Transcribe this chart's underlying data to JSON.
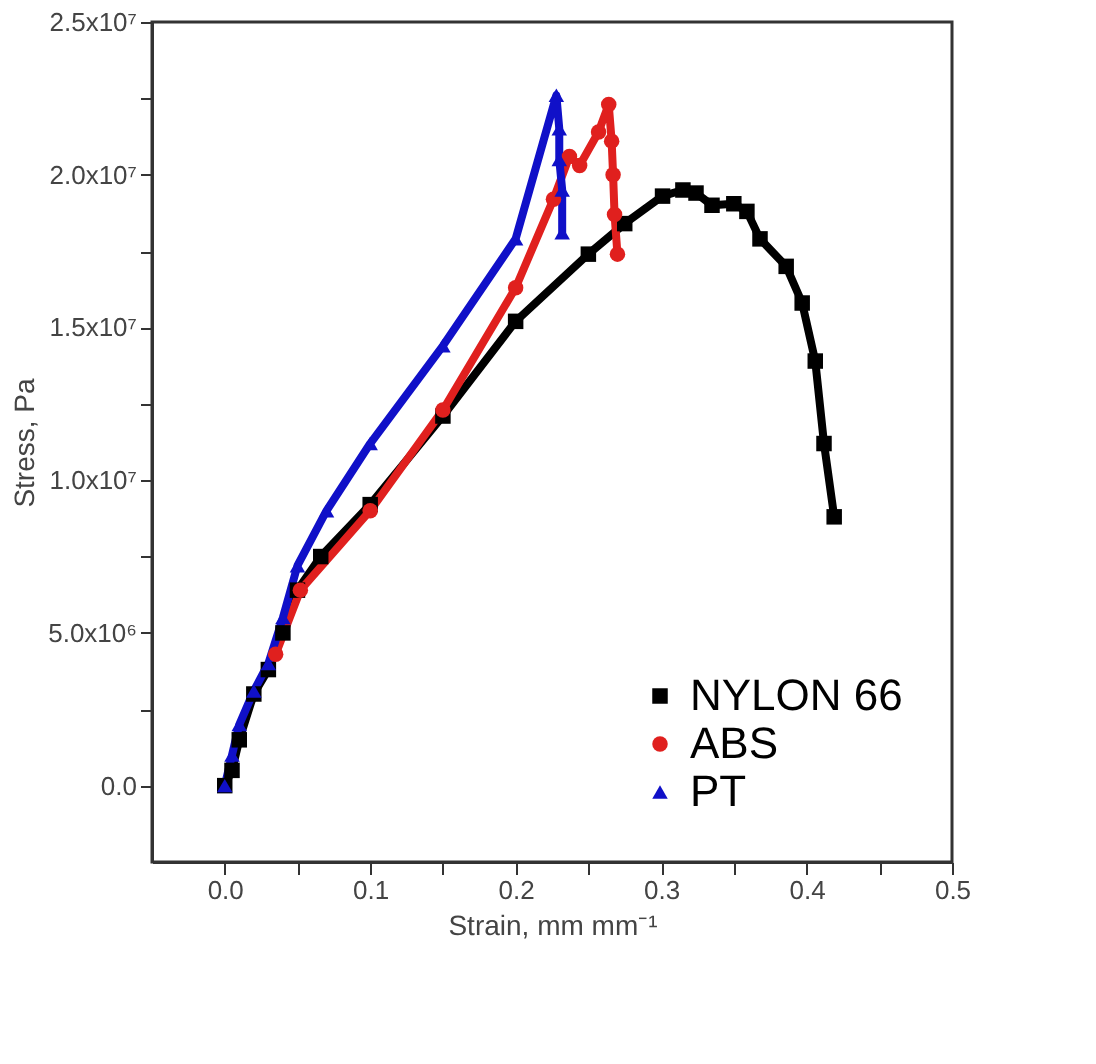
{
  "chart_data": {
    "type": "line",
    "xlabel": "Strain, mm mm⁻¹",
    "ylabel": "Stress, Pa",
    "xlim": [
      -0.05,
      0.5
    ],
    "ylim": [
      -2500000,
      25000000
    ],
    "xticks": [
      {
        "value": 0,
        "label": "0.0"
      },
      {
        "value": 0.05,
        "label": null
      },
      0.1,
      {
        "value": 0.15,
        "label": null
      },
      0.2,
      {
        "value": 0.25,
        "label": null
      },
      0.3,
      {
        "value": 0.35,
        "label": null
      },
      0.4,
      {
        "value": 0.45,
        "label": null
      },
      0.5
    ],
    "yticks": [
      {
        "value": 0,
        "label": "0.0"
      },
      {
        "value": 2500000,
        "label": null
      },
      {
        "value": 5000000,
        "label": "5.0x10⁶"
      },
      {
        "value": 7500000,
        "label": null
      },
      {
        "value": 10000000,
        "label": "1.0x10⁷"
      },
      {
        "value": 12500000,
        "label": null
      },
      {
        "value": 15000000,
        "label": "1.5x10⁷"
      },
      {
        "value": 17500000,
        "label": null
      },
      {
        "value": 20000000,
        "label": "2.0x10⁷"
      },
      {
        "value": 22500000,
        "label": null
      },
      {
        "value": 25000000,
        "label": "2.5x10⁷"
      }
    ],
    "grid": false,
    "legend": "bottom right",
    "series": [
      {
        "name": "NYLON 66",
        "color": "#000000",
        "marker": "square",
        "x": [
          0,
          0.005,
          0.01,
          0.02,
          0.03,
          0.04,
          0.05,
          0.066,
          0.1,
          0.15,
          0.2,
          0.25,
          0.275,
          0.301,
          0.315,
          0.324,
          0.335,
          0.35,
          0.359,
          0.368,
          0.386,
          0.397,
          0.406,
          0.412,
          0.419
        ],
        "values": [
          0,
          500000,
          1500000,
          3000000,
          3800000,
          5000000,
          6400000,
          7500000,
          9200000,
          12100000,
          15200000,
          17400000,
          18400000,
          19300000,
          19500000,
          19400000,
          19000000,
          19050000,
          18800000,
          17900000,
          17000000,
          15800000,
          13900000,
          11200000,
          8800000
        ]
      },
      {
        "name": "ABS",
        "color": "#e0201e",
        "marker": "circle",
        "x": [
          0.035,
          0.052,
          0.1,
          0.15,
          0.2,
          0.226,
          0.237,
          0.244,
          0.257,
          0.264,
          0.266,
          0.267,
          0.268,
          0.27
        ],
        "values": [
          4300000,
          6400000,
          9000000,
          12300000,
          16300000,
          19200000,
          20600000,
          20300000,
          21400000,
          22300000,
          21100000,
          20000000,
          18700000,
          17400000
        ]
      },
      {
        "name": "PT",
        "color": "#1010c8",
        "marker": "triangle",
        "x": [
          0,
          0.005,
          0.01,
          0.02,
          0.03,
          0.04,
          0.05,
          0.07,
          0.1,
          0.15,
          0.2,
          0.228,
          0.23,
          0.23,
          0.232,
          0.232
        ],
        "values": [
          0,
          1000000,
          2000000,
          3100000,
          4000000,
          5500000,
          7200000,
          9000000,
          11200000,
          14400000,
          17900000,
          22600000,
          21500000,
          20500000,
          19500000,
          18100000
        ]
      }
    ]
  }
}
